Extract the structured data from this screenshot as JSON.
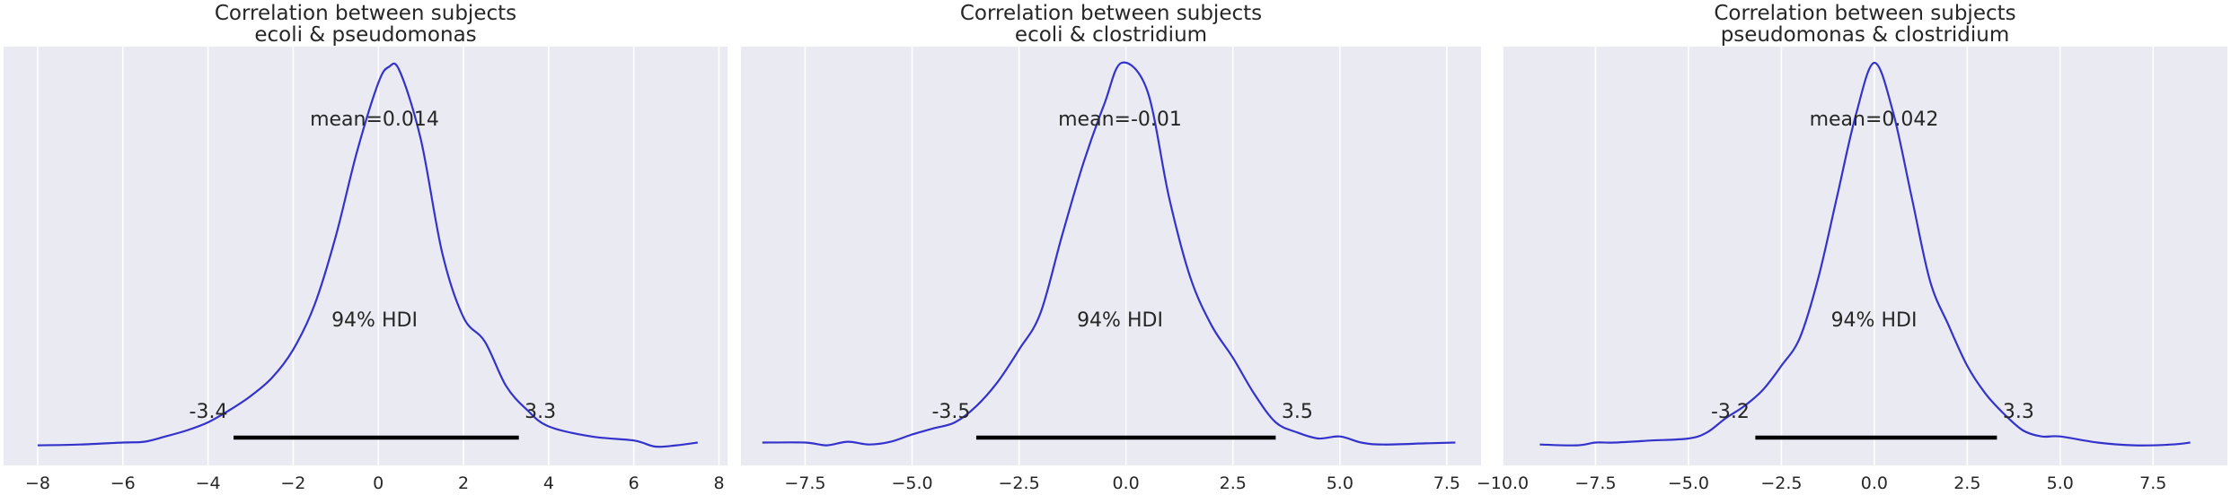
{
  "chart_data": [
    {
      "type": "area",
      "title_line1": "Correlation between subjects",
      "title_line2": "ecoli & pseudomonas",
      "xlim": [
        -8.8,
        8.2
      ],
      "ticks": [
        -8,
        -6,
        -4,
        -2,
        0,
        2,
        4,
        6,
        8
      ],
      "tick_labels": [
        "−8",
        "−6",
        "−4",
        "−2",
        "0",
        "2",
        "4",
        "6",
        "8"
      ],
      "mean_label": "mean=0.014",
      "hdi_label": "94% HDI",
      "hdi": [
        -3.4,
        3.3
      ],
      "hdi_low_label": "-3.4",
      "hdi_high_label": "3.3",
      "x": [
        -8.0,
        -7.0,
        -6.0,
        -5.5,
        -5.0,
        -4.5,
        -4.0,
        -3.5,
        -3.0,
        -2.5,
        -2.0,
        -1.5,
        -1.0,
        -0.5,
        0.0,
        0.25,
        0.5,
        1.0,
        1.5,
        2.0,
        2.5,
        3.0,
        3.5,
        4.0,
        5.0,
        6.0,
        6.5,
        7.0,
        7.5
      ],
      "density": [
        0.003,
        0.005,
        0.01,
        0.012,
        0.025,
        0.04,
        0.06,
        0.09,
        0.125,
        0.17,
        0.24,
        0.35,
        0.52,
        0.73,
        0.9,
        0.94,
        0.93,
        0.76,
        0.48,
        0.32,
        0.26,
        0.15,
        0.09,
        0.05,
        0.025,
        0.015,
        0.0,
        0.003,
        0.01
      ]
    },
    {
      "type": "area",
      "title_line1": "Correlation between subjects",
      "title_line2": "ecoli & clostridium",
      "xlim": [
        -9.0,
        8.3
      ],
      "ticks": [
        -7.5,
        -5.0,
        -2.5,
        0.0,
        2.5,
        5.0,
        7.5
      ],
      "tick_labels": [
        "−7.5",
        "−5.0",
        "−2.5",
        "0.0",
        "2.5",
        "5.0",
        "7.5"
      ],
      "mean_label": "mean=-0.01",
      "hdi_label": "94% HDI",
      "hdi": [
        -3.5,
        3.5
      ],
      "hdi_low_label": "-3.5",
      "hdi_high_label": "3.5",
      "x": [
        -8.5,
        -7.5,
        -7.0,
        -6.5,
        -6.0,
        -5.5,
        -5.0,
        -4.5,
        -4.0,
        -3.5,
        -3.0,
        -2.5,
        -2.0,
        -1.5,
        -1.0,
        -0.5,
        -0.1,
        0.5,
        1.0,
        1.5,
        2.0,
        2.5,
        3.0,
        3.5,
        4.0,
        4.5,
        5.0,
        5.5,
        6.0,
        7.0,
        7.7
      ],
      "density": [
        0.01,
        0.01,
        0.003,
        0.012,
        0.005,
        0.012,
        0.03,
        0.045,
        0.06,
        0.1,
        0.16,
        0.24,
        0.33,
        0.52,
        0.7,
        0.85,
        0.95,
        0.88,
        0.62,
        0.42,
        0.3,
        0.22,
        0.13,
        0.06,
        0.035,
        0.02,
        0.025,
        0.01,
        0.005,
        0.008,
        0.01
      ]
    },
    {
      "type": "area",
      "title_line1": "Correlation between subjects",
      "title_line2": "pseudomonas & clostridium",
      "xlim": [
        -10.0,
        9.5
      ],
      "ticks": [
        -10.0,
        -7.5,
        -5.0,
        -2.5,
        0.0,
        2.5,
        5.0,
        7.5
      ],
      "tick_labels": [
        "−10.0",
        "−7.5",
        "−5.0",
        "−2.5",
        "0.0",
        "2.5",
        "5.0",
        "7.5"
      ],
      "mean_label": "mean=0.042",
      "hdi_label": "94% HDI",
      "hdi": [
        -3.2,
        3.3
      ],
      "hdi_low_label": "-3.2",
      "hdi_high_label": "3.3",
      "x": [
        -9.0,
        -8.0,
        -7.5,
        -7.0,
        -6.0,
        -5.0,
        -4.5,
        -4.0,
        -3.5,
        -3.0,
        -2.5,
        -2.0,
        -1.5,
        -1.0,
        -0.5,
        0.0,
        0.5,
        1.0,
        1.5,
        2.0,
        2.5,
        3.0,
        3.5,
        4.0,
        4.5,
        5.0,
        6.0,
        7.0,
        8.0,
        8.5
      ],
      "density": [
        0.005,
        0.003,
        0.01,
        0.01,
        0.015,
        0.02,
        0.035,
        0.07,
        0.1,
        0.14,
        0.2,
        0.27,
        0.42,
        0.62,
        0.82,
        0.95,
        0.83,
        0.62,
        0.41,
        0.3,
        0.2,
        0.13,
        0.08,
        0.04,
        0.025,
        0.025,
        0.01,
        0.003,
        0.005,
        0.01
      ]
    }
  ],
  "colors": {
    "panel_bg": "#eaeaf2",
    "grid": "#ffffff",
    "curve": "#3333cc",
    "hdi_bar": "#000000",
    "text": "#262626"
  }
}
